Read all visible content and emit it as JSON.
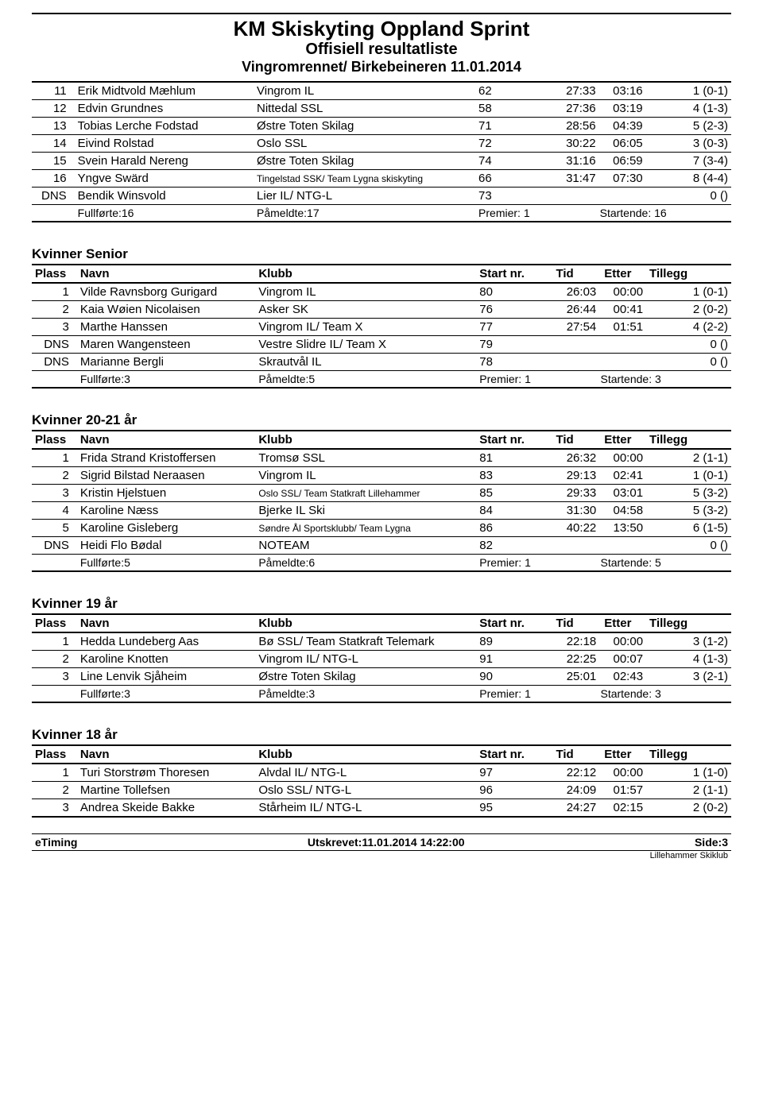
{
  "header": {
    "title1": "KM Skiskyting Oppland Sprint",
    "title2": "Offisiell resultatliste",
    "title3": "Vingromrennet/ Birkebeineren 11.01.2014"
  },
  "columns": {
    "plass": "Plass",
    "navn": "Navn",
    "klubb": "Klubb",
    "start": "Start nr.",
    "tid": "Tid",
    "etter": "Etter",
    "tillegg": "Tillegg"
  },
  "sections": [
    {
      "title": "",
      "showHeader": false,
      "rows": [
        {
          "plass": "11",
          "navn": "Erik Midtvold Mæhlum",
          "klubb": "Vingrom IL",
          "start": "62",
          "tid": "27:33",
          "etter": "03:16",
          "tillegg": "1 (0-1)"
        },
        {
          "plass": "12",
          "navn": "Edvin  Grundnes",
          "klubb": "Nittedal SSL",
          "start": "58",
          "tid": "27:36",
          "etter": "03:19",
          "tillegg": "4 (1-3)"
        },
        {
          "plass": "13",
          "navn": "Tobias Lerche Fodstad",
          "klubb": "Østre Toten Skilag",
          "start": "71",
          "tid": "28:56",
          "etter": "04:39",
          "tillegg": "5 (2-3)"
        },
        {
          "plass": "14",
          "navn": "Eivind Rolstad",
          "klubb": "Oslo SSL",
          "start": "72",
          "tid": "30:22",
          "etter": "06:05",
          "tillegg": "3 (0-3)"
        },
        {
          "plass": "15",
          "navn": "Svein Harald Nereng",
          "klubb": "Østre Toten Skilag",
          "start": "74",
          "tid": "31:16",
          "etter": "06:59",
          "tillegg": "7 (3-4)"
        },
        {
          "plass": "16",
          "navn": "Yngve Swärd",
          "klubb": "Tingelstad SSK/ Team Lygna skiskyting",
          "klubbSmall": true,
          "start": "66",
          "tid": "31:47",
          "etter": "07:30",
          "tillegg": "8 (4-4)"
        },
        {
          "plass": "DNS",
          "navn": "Bendik Winsvold",
          "klubb": "Lier IL/ NTG-L",
          "start": "73",
          "tid": "",
          "etter": "",
          "tillegg": "0 ()"
        }
      ],
      "summary": {
        "fullforte": "Fullførte:16",
        "pameldte": "Påmeldte:17",
        "premier": "Premier: 1",
        "startende": "Startende: 16"
      }
    },
    {
      "title": "Kvinner Senior",
      "showHeader": true,
      "rows": [
        {
          "plass": "1",
          "navn": "Vilde Ravnsborg Gurigard",
          "klubb": "Vingrom IL",
          "start": "80",
          "tid": "26:03",
          "etter": "00:00",
          "tillegg": "1 (0-1)"
        },
        {
          "plass": "2",
          "navn": "Kaia Wøien Nicolaisen",
          "klubb": "Asker SK",
          "start": "76",
          "tid": "26:44",
          "etter": "00:41",
          "tillegg": "2 (0-2)"
        },
        {
          "plass": "3",
          "navn": "Marthe Hanssen",
          "klubb": "Vingrom IL/ Team X",
          "start": "77",
          "tid": "27:54",
          "etter": "01:51",
          "tillegg": "4 (2-2)"
        },
        {
          "plass": "DNS",
          "navn": "Maren Wangensteen",
          "klubb": "Vestre Slidre IL/ Team X",
          "start": "79",
          "tid": "",
          "etter": "",
          "tillegg": "0 ()"
        },
        {
          "plass": "DNS",
          "navn": "Marianne Bergli",
          "klubb": "Skrautvål IL",
          "start": "78",
          "tid": "",
          "etter": "",
          "tillegg": "0 ()"
        }
      ],
      "summary": {
        "fullforte": "Fullførte:3",
        "pameldte": "Påmeldte:5",
        "premier": "Premier: 1",
        "startende": "Startende: 3"
      }
    },
    {
      "title": "Kvinner 20-21 år",
      "showHeader": true,
      "rows": [
        {
          "plass": "1",
          "navn": "Frida Strand  Kristoffersen",
          "klubb": "Tromsø SSL",
          "start": "81",
          "tid": "26:32",
          "etter": "00:00",
          "tillegg": "2 (1-1)"
        },
        {
          "plass": "2",
          "navn": "Sigrid Bilstad Neraasen",
          "klubb": "Vingrom IL",
          "start": "83",
          "tid": "29:13",
          "etter": "02:41",
          "tillegg": "1 (0-1)"
        },
        {
          "plass": "3",
          "navn": "Kristin Hjelstuen",
          "klubb": "Oslo SSL/ Team Statkraft Lillehammer",
          "klubbSmall": true,
          "start": "85",
          "tid": "29:33",
          "etter": "03:01",
          "tillegg": "5 (3-2)"
        },
        {
          "plass": "4",
          "navn": "Karoline Næss",
          "klubb": "Bjerke IL Ski",
          "start": "84",
          "tid": "31:30",
          "etter": "04:58",
          "tillegg": "5 (3-2)"
        },
        {
          "plass": "5",
          "navn": "Karoline Gisleberg",
          "klubb": "Søndre Ål Sportsklubb/ Team Lygna",
          "klubbSmall": true,
          "start": "86",
          "tid": "40:22",
          "etter": "13:50",
          "tillegg": "6 (1-5)"
        },
        {
          "plass": "DNS",
          "navn": "Heidi Flo Bødal",
          "klubb": "NOTEAM",
          "start": "82",
          "tid": "",
          "etter": "",
          "tillegg": "0 ()"
        }
      ],
      "summary": {
        "fullforte": "Fullførte:5",
        "pameldte": "Påmeldte:6",
        "premier": "Premier: 1",
        "startende": "Startende: 5"
      }
    },
    {
      "title": "Kvinner 19 år",
      "showHeader": true,
      "rows": [
        {
          "plass": "1",
          "navn": "Hedda Lundeberg Aas",
          "klubb": "Bø SSL/ Team Statkraft Telemark",
          "start": "89",
          "tid": "22:18",
          "etter": "00:00",
          "tillegg": "3 (1-2)"
        },
        {
          "plass": "2",
          "navn": "Karoline Knotten",
          "klubb": "Vingrom IL/ NTG-L",
          "start": "91",
          "tid": "22:25",
          "etter": "00:07",
          "tillegg": "4 (1-3)"
        },
        {
          "plass": "3",
          "navn": "Line Lenvik Sjåheim",
          "klubb": "Østre Toten Skilag",
          "start": "90",
          "tid": "25:01",
          "etter": "02:43",
          "tillegg": "3 (2-1)"
        }
      ],
      "summary": {
        "fullforte": "Fullførte:3",
        "pameldte": "Påmeldte:3",
        "premier": "Premier: 1",
        "startende": "Startende: 3"
      }
    },
    {
      "title": "Kvinner 18 år",
      "showHeader": true,
      "noSummary": true,
      "rows": [
        {
          "plass": "1",
          "navn": "Turi Storstrøm Thoresen",
          "klubb": "Alvdal IL/ NTG-L",
          "start": "97",
          "tid": "22:12",
          "etter": "00:00",
          "tillegg": "1 (1-0)"
        },
        {
          "plass": "2",
          "navn": "Martine Tollefsen",
          "klubb": "Oslo SSL/ NTG-L",
          "start": "96",
          "tid": "24:09",
          "etter": "01:57",
          "tillegg": "2 (1-1)"
        },
        {
          "plass": "3",
          "navn": "Andrea Skeide Bakke",
          "klubb": "Stårheim IL/ NTG-L",
          "start": "95",
          "tid": "24:27",
          "etter": "02:15",
          "tillegg": "2 (0-2)"
        }
      ]
    }
  ],
  "footer": {
    "left": "eTiming",
    "center": "Utskrevet:11.01.2014 14:22:00",
    "right": "Side:3",
    "sub": "Lillehammer Skiklub"
  }
}
